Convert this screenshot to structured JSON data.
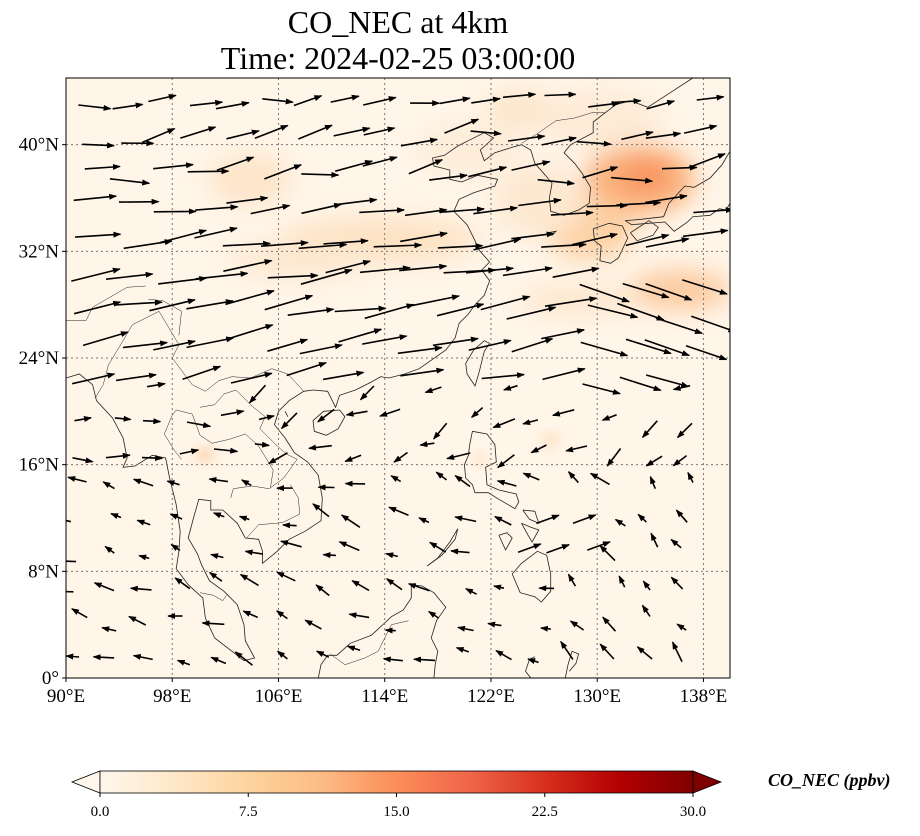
{
  "title": {
    "line1": "CO_NEC at 4km",
    "line2": "Time: 2024-02-25 03:00:00"
  },
  "map": {
    "lon_range": [
      90,
      140
    ],
    "lat_range": [
      0,
      45
    ],
    "lon_ticks": [
      {
        "value": 90,
        "label": "90°E"
      },
      {
        "value": 98,
        "label": "98°E"
      },
      {
        "value": 106,
        "label": "106°E"
      },
      {
        "value": 114,
        "label": "114°E"
      },
      {
        "value": 122,
        "label": "122°E"
      },
      {
        "value": 130,
        "label": "130°E"
      },
      {
        "value": 138,
        "label": "138°E"
      }
    ],
    "lat_ticks": [
      {
        "value": 0,
        "label": "0°"
      },
      {
        "value": 8,
        "label": "8°N"
      },
      {
        "value": 16,
        "label": "16°N"
      },
      {
        "value": 24,
        "label": "24°N"
      },
      {
        "value": 32,
        "label": "32°N"
      },
      {
        "value": 40,
        "label": "40°N"
      }
    ],
    "gridlines": true
  },
  "colorbar": {
    "label": "CO_NEC (ppbv)",
    "min": 0,
    "max": 30,
    "ticks": [
      "0.0",
      "7.5",
      "15.0",
      "22.5",
      "30.0"
    ],
    "tick_values": [
      0,
      7.5,
      15,
      22.5,
      30
    ],
    "colormap": "OrRd",
    "extend": "both",
    "colors": [
      "#fff7ec",
      "#fee8c8",
      "#fdd49e",
      "#fdbb84",
      "#fc8d59",
      "#ef6548",
      "#d7301f",
      "#b30000",
      "#7f0000"
    ]
  }
}
